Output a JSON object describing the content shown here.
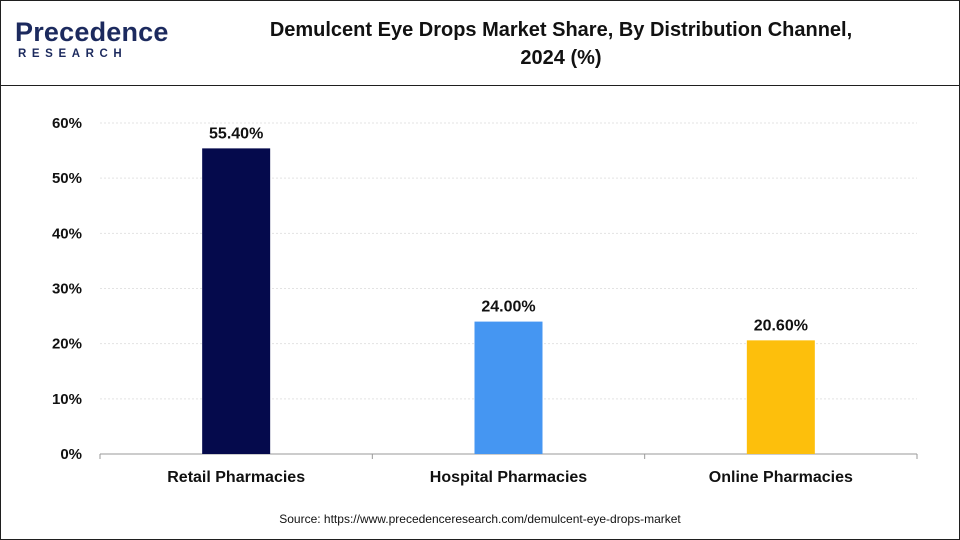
{
  "header": {
    "logo_main": "Precedence",
    "logo_sub": "RESEARCH",
    "title_line1": "Demulcent Eye Drops Market Share, By Distribution Channel,",
    "title_line2": "2024 (%)"
  },
  "footer": {
    "source": "Source: https://www.precedenceresearch.com/demulcent-eye-drops-market"
  },
  "chart_data": {
    "type": "bar",
    "title": "Demulcent Eye Drops Market Share, By Distribution Channel, 2024 (%)",
    "categories": [
      "Retail Pharmacies",
      "Hospital Pharmacies",
      "Online Pharmacies"
    ],
    "values": [
      55.4,
      24.0,
      20.6
    ],
    "data_labels": [
      "55.40%",
      "24.00%",
      "20.60%"
    ],
    "colors": [
      "#050a4c",
      "#4596f2",
      "#fdbf0c"
    ],
    "ylim": [
      0,
      60
    ],
    "yticks": [
      "0%",
      "10%",
      "20%",
      "30%",
      "40%",
      "50%",
      "60%"
    ],
    "ytick_values": [
      0,
      10,
      20,
      30,
      40,
      50,
      60
    ],
    "grid": true,
    "xlabel": "",
    "ylabel": ""
  }
}
